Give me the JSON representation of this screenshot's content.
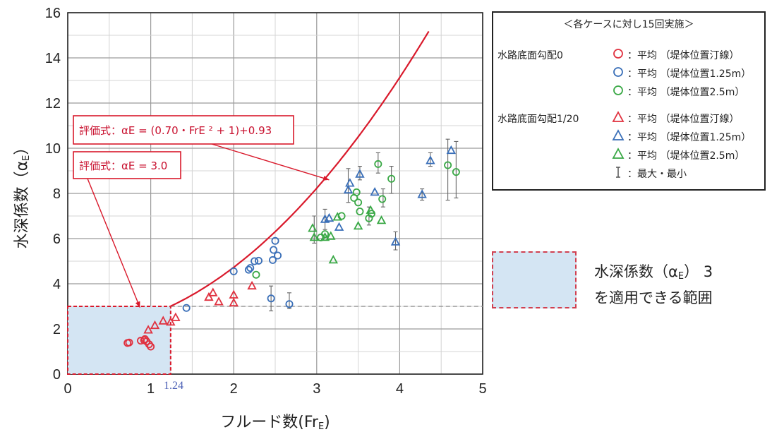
{
  "chart_data": {
    "type": "scatter",
    "xlabel": "フルード数(Fr",
    "xlabel_sub": "E",
    "xlabel_close": ")",
    "ylabel": "水深係数（α",
    "ylabel_sub": "E",
    "ylabel_close": "）",
    "xlim": [
      0,
      5
    ],
    "ylim": [
      0,
      16
    ],
    "xticks": [
      "0",
      "1",
      "2",
      "3",
      "4",
      "5"
    ],
    "yticks": [
      "0",
      "2",
      "4",
      "6",
      "8",
      "10",
      "12",
      "14",
      "16"
    ],
    "x_minor_step": 0.5,
    "y_minor_step": 1,
    "grid": true,
    "legend_position": "right",
    "curve": {
      "formula": "αE = 0.70·FrE² + 1 + 0.93",
      "a": 0.7,
      "b": 1,
      "c": 0.93,
      "x_from": 1.24,
      "x_to": 4.35,
      "color": "#d9192b"
    },
    "threshold": {
      "y": 3.0,
      "x_limit": 1.24,
      "label": "1.24",
      "color": "#999999"
    },
    "callouts": [
      {
        "text": "評価式：αE = (0.70・FrE ² + 1)+0.93",
        "target": [
          3.15,
          8.6
        ]
      },
      {
        "text": "評価式：αE = 3.0",
        "target": [
          0.87,
          2.95
        ]
      }
    ],
    "legend": {
      "title": "＜各ケースに対し15回実施＞",
      "groups": [
        {
          "label": "水路底面勾配0",
          "rows": [
            {
              "marker": "circle",
              "color": "#e0313f",
              "text": "：平均 （堤体位置汀線）"
            },
            {
              "marker": "circle",
              "color": "#3a6fb8",
              "text": "：平均 （堤体位置1.25m）"
            },
            {
              "marker": "circle",
              "color": "#39a845",
              "text": "：平均 （堤体位置2.5m）"
            }
          ]
        },
        {
          "label": "水路底面勾配1/20",
          "rows": [
            {
              "marker": "triangle",
              "color": "#e0313f",
              "text": "：平均 （堤体位置汀線）"
            },
            {
              "marker": "triangle",
              "color": "#3a6fb8",
              "text": "：平均 （堤体位置1.25m）"
            },
            {
              "marker": "triangle",
              "color": "#39a845",
              "text": "：平均 （堤体位置2.5m）"
            }
          ]
        }
      ],
      "errbar_text": "：最大・最小"
    },
    "range_note": {
      "line1": "水深係数（α",
      "line1_sub": "E",
      "line1_tail": "） 3",
      "line2": "を適用できる範囲",
      "color": "#d4e5f3"
    },
    "series": [
      {
        "marker": "circle",
        "color": "#e0313f",
        "points": [
          [
            0.72,
            1.38
          ],
          [
            0.74,
            1.4
          ],
          [
            0.88,
            1.48
          ],
          [
            0.92,
            1.5
          ],
          [
            0.95,
            1.45
          ],
          [
            0.98,
            1.32
          ],
          [
            1.0,
            1.22
          ],
          [
            0.93,
            1.55
          ]
        ]
      },
      {
        "marker": "circle",
        "color": "#3a6fb8",
        "points": [
          [
            1.43,
            2.93
          ],
          [
            2.0,
            4.55
          ],
          [
            2.18,
            4.62
          ],
          [
            2.2,
            4.7
          ],
          [
            2.25,
            5.0
          ],
          [
            2.3,
            5.02
          ],
          [
            2.45,
            3.35
          ],
          [
            2.47,
            5.05
          ],
          [
            2.48,
            5.5
          ],
          [
            2.5,
            5.9
          ],
          [
            2.53,
            5.25
          ],
          [
            2.67,
            3.1
          ]
        ]
      },
      {
        "marker": "circle",
        "color": "#39a845",
        "points": [
          [
            2.27,
            4.4
          ],
          [
            3.05,
            6.05
          ],
          [
            3.1,
            6.2
          ],
          [
            3.3,
            7.0
          ],
          [
            3.45,
            7.8
          ],
          [
            3.48,
            8.05
          ],
          [
            3.5,
            7.6
          ],
          [
            3.52,
            7.2
          ],
          [
            3.63,
            6.9
          ],
          [
            3.66,
            7.1
          ],
          [
            3.74,
            9.3
          ],
          [
            3.79,
            7.75
          ],
          [
            3.9,
            8.65
          ],
          [
            4.58,
            9.25
          ],
          [
            4.68,
            8.95
          ]
        ]
      },
      {
        "marker": "triangle",
        "color": "#e0313f",
        "points": [
          [
            0.97,
            1.95
          ],
          [
            1.05,
            2.15
          ],
          [
            1.15,
            2.35
          ],
          [
            1.24,
            2.3
          ],
          [
            1.3,
            2.5
          ],
          [
            1.7,
            3.4
          ],
          [
            1.75,
            3.6
          ],
          [
            1.82,
            3.2
          ],
          [
            2.0,
            3.5
          ],
          [
            2.0,
            3.15
          ],
          [
            2.22,
            3.9
          ]
        ]
      },
      {
        "marker": "triangle",
        "color": "#3a6fb8",
        "points": [
          [
            3.1,
            6.85
          ],
          [
            3.15,
            6.9
          ],
          [
            3.27,
            6.5
          ],
          [
            3.38,
            8.15
          ],
          [
            3.4,
            8.45
          ],
          [
            3.52,
            8.85
          ],
          [
            3.7,
            8.05
          ],
          [
            3.95,
            5.85
          ],
          [
            4.27,
            7.95
          ],
          [
            4.37,
            9.45
          ],
          [
            4.62,
            9.9
          ]
        ]
      },
      {
        "marker": "triangle",
        "color": "#39a845",
        "points": [
          [
            2.95,
            6.45
          ],
          [
            2.97,
            6.05
          ],
          [
            3.1,
            6.05
          ],
          [
            3.17,
            6.1
          ],
          [
            3.2,
            5.05
          ],
          [
            3.25,
            6.95
          ],
          [
            3.5,
            6.55
          ],
          [
            3.65,
            7.25
          ],
          [
            3.78,
            6.8
          ]
        ]
      }
    ],
    "errorbars": [
      [
        2.45,
        2.8,
        3.9
      ],
      [
        2.67,
        2.9,
        3.6
      ],
      [
        2.97,
        5.8,
        7.0
      ],
      [
        3.1,
        6.4,
        7.3
      ],
      [
        3.38,
        7.6,
        9.1
      ],
      [
        3.74,
        8.9,
        9.8
      ],
      [
        3.9,
        8.0,
        9.2
      ],
      [
        3.95,
        5.5,
        6.3
      ],
      [
        4.58,
        7.7,
        10.4
      ],
      [
        4.68,
        7.8,
        10.3
      ],
      [
        4.37,
        9.2,
        9.8
      ],
      [
        4.27,
        7.7,
        8.2
      ],
      [
        3.52,
        8.6,
        9.2
      ],
      [
        3.63,
        6.6,
        7.4
      ],
      [
        3.8,
        7.4,
        8.2
      ]
    ]
  }
}
